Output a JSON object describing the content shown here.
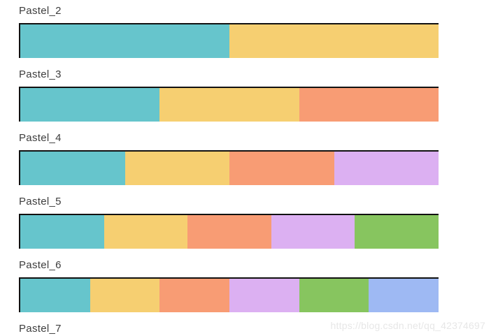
{
  "figure": {
    "background": "#ffffff",
    "label_color": "#3d3d3d",
    "bar_border_color": "#111111"
  },
  "palette_colors": {
    "teal": "#66C5CC",
    "yellow": "#F6CF71",
    "orange": "#F89C74",
    "lavender": "#DCB0F2",
    "green": "#87C55F",
    "blue": "#9EB9F3"
  },
  "palettes": [
    {
      "label": "Pastel_2",
      "colors": [
        "#66C5CC",
        "#F6CF71"
      ]
    },
    {
      "label": "Pastel_3",
      "colors": [
        "#66C5CC",
        "#F6CF71",
        "#F89C74"
      ]
    },
    {
      "label": "Pastel_4",
      "colors": [
        "#66C5CC",
        "#F6CF71",
        "#F89C74",
        "#DCB0F2"
      ]
    },
    {
      "label": "Pastel_5",
      "colors": [
        "#66C5CC",
        "#F6CF71",
        "#F89C74",
        "#DCB0F2",
        "#87C55F"
      ]
    },
    {
      "label": "Pastel_6",
      "colors": [
        "#66C5CC",
        "#F6CF71",
        "#F89C74",
        "#DCB0F2",
        "#87C55F",
        "#9EB9F3"
      ]
    },
    {
      "label": "Pastel_7",
      "colors": []
    }
  ],
  "watermark": {
    "text": "https://blog.csdn.net/qq_42374697"
  },
  "chart_data": {
    "type": "bar",
    "orientation": "horizontal",
    "title": "",
    "description": "Qualitative color palette swatch strips, one row per palette; each strip is divided into equal-width color segments",
    "rows": [
      {
        "label": "Pastel_2",
        "segments": [
          "#66C5CC",
          "#F6CF71"
        ],
        "segment_fraction": 0.5
      },
      {
        "label": "Pastel_3",
        "segments": [
          "#66C5CC",
          "#F6CF71",
          "#F89C74"
        ],
        "segment_fraction": 0.3333
      },
      {
        "label": "Pastel_4",
        "segments": [
          "#66C5CC",
          "#F6CF71",
          "#F89C74",
          "#DCB0F2"
        ],
        "segment_fraction": 0.25
      },
      {
        "label": "Pastel_5",
        "segments": [
          "#66C5CC",
          "#F6CF71",
          "#F89C74",
          "#DCB0F2",
          "#87C55F"
        ],
        "segment_fraction": 0.2
      },
      {
        "label": "Pastel_6",
        "segments": [
          "#66C5CC",
          "#F6CF71",
          "#F89C74",
          "#DCB0F2",
          "#87C55F",
          "#9EB9F3"
        ],
        "segment_fraction": 0.1667
      },
      {
        "label": "Pastel_7",
        "segments": [],
        "segment_fraction": null
      }
    ],
    "legend": "none",
    "grid": false
  }
}
